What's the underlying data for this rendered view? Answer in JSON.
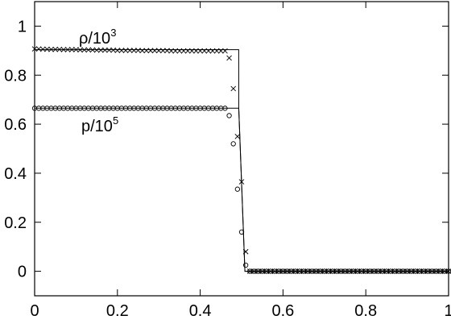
{
  "chart_data": {
    "type": "line",
    "title": "",
    "xlabel": "",
    "ylabel": "",
    "xlim": [
      0,
      1
    ],
    "ylim": [
      -0.1,
      1.1
    ],
    "x_ticks": [
      "0",
      "0.2",
      "0.4",
      "0.6",
      "0.8",
      "1"
    ],
    "x_tick_values": [
      0,
      0.2,
      0.4,
      0.6,
      0.8,
      1
    ],
    "y_ticks": [
      "0",
      "0.2",
      "0.4",
      "0.6",
      "0.8",
      "1"
    ],
    "y_tick_values": [
      0,
      0.2,
      0.4,
      0.6,
      0.8,
      1
    ],
    "grid": false,
    "annotations": [
      {
        "base": "ρ/10",
        "exp": "3"
      },
      {
        "base": "p/10",
        "exp": "5"
      }
    ],
    "series": [
      {
        "kind": "line",
        "color": "#000000",
        "x": [
          0,
          0.493,
          0.4931,
          0.508,
          0.5081,
          1
        ],
        "y": [
          0.904,
          0.904,
          0.665,
          0.0,
          0.0,
          0.0
        ]
      },
      {
        "kind": "line",
        "color": "#000000",
        "x": [
          0,
          0.4931,
          0.508,
          1
        ],
        "y": [
          0.665,
          0.665,
          0.0,
          0.0
        ]
      },
      {
        "kind": "markers",
        "marker": "x",
        "color": "#000000",
        "x": [
          0.0,
          0.01,
          0.02,
          0.03,
          0.04,
          0.05,
          0.06,
          0.07,
          0.08,
          0.09,
          0.1,
          0.11,
          0.12,
          0.13,
          0.14,
          0.15,
          0.16,
          0.17,
          0.18,
          0.19,
          0.2,
          0.21,
          0.22,
          0.23,
          0.24,
          0.25,
          0.26,
          0.27,
          0.28,
          0.29,
          0.3,
          0.31,
          0.32,
          0.33,
          0.34,
          0.35,
          0.36,
          0.37,
          0.38,
          0.39,
          0.4,
          0.41,
          0.42,
          0.43,
          0.44,
          0.45,
          0.46,
          0.47,
          0.48,
          0.49,
          0.5,
          0.51,
          0.52,
          0.53,
          0.54,
          0.55,
          0.56,
          0.57,
          0.58,
          0.59,
          0.6,
          0.61,
          0.62,
          0.63,
          0.64,
          0.65,
          0.66,
          0.67,
          0.68,
          0.69,
          0.7,
          0.71,
          0.72,
          0.73,
          0.74,
          0.75,
          0.76,
          0.77,
          0.78,
          0.79,
          0.8,
          0.81,
          0.82,
          0.83,
          0.84,
          0.85,
          0.86,
          0.87,
          0.88,
          0.89,
          0.9,
          0.91,
          0.92,
          0.93,
          0.94,
          0.95,
          0.96,
          0.97,
          0.98,
          0.99,
          1.0
        ],
        "y": [
          0.907,
          0.907,
          0.906,
          0.906,
          0.905,
          0.905,
          0.905,
          0.904,
          0.904,
          0.904,
          0.904,
          0.903,
          0.903,
          0.903,
          0.903,
          0.902,
          0.902,
          0.902,
          0.902,
          0.902,
          0.901,
          0.901,
          0.901,
          0.901,
          0.901,
          0.901,
          0.9,
          0.9,
          0.9,
          0.9,
          0.9,
          0.9,
          0.9,
          0.899,
          0.899,
          0.899,
          0.899,
          0.899,
          0.899,
          0.899,
          0.899,
          0.899,
          0.899,
          0.899,
          0.899,
          0.899,
          0.899,
          0.87,
          0.745,
          0.55,
          0.365,
          0.08,
          0.0,
          0.0,
          0.0,
          0.0,
          0.0,
          0.0,
          0.0,
          0.0,
          0.0,
          0.0,
          0.0,
          0.0,
          0.0,
          0.0,
          0.0,
          0.0,
          0.0,
          0.0,
          0.0,
          0.0,
          0.0,
          0.0,
          0.0,
          0.0,
          0.0,
          0.0,
          0.0,
          0.0,
          0.0,
          0.0,
          0.0,
          0.0,
          0.0,
          0.0,
          0.0,
          0.0,
          0.0,
          0.0,
          0.0,
          0.0,
          0.0,
          0.0,
          0.0,
          0.0,
          0.0,
          0.0,
          0.0,
          0.0,
          0.0
        ]
      },
      {
        "kind": "markers",
        "marker": "o",
        "color": "#000000",
        "x": [
          0.0,
          0.01,
          0.02,
          0.03,
          0.04,
          0.05,
          0.06,
          0.07,
          0.08,
          0.09,
          0.1,
          0.11,
          0.12,
          0.13,
          0.14,
          0.15,
          0.16,
          0.17,
          0.18,
          0.19,
          0.2,
          0.21,
          0.22,
          0.23,
          0.24,
          0.25,
          0.26,
          0.27,
          0.28,
          0.29,
          0.3,
          0.31,
          0.32,
          0.33,
          0.34,
          0.35,
          0.36,
          0.37,
          0.38,
          0.39,
          0.4,
          0.41,
          0.42,
          0.43,
          0.44,
          0.45,
          0.46,
          0.47,
          0.48,
          0.49,
          0.5,
          0.51,
          0.52,
          0.53,
          0.54,
          0.55,
          0.56,
          0.57,
          0.58,
          0.59,
          0.6,
          0.61,
          0.62,
          0.63,
          0.64,
          0.65,
          0.66,
          0.67,
          0.68,
          0.69,
          0.7,
          0.71,
          0.72,
          0.73,
          0.74,
          0.75,
          0.76,
          0.77,
          0.78,
          0.79,
          0.8,
          0.81,
          0.82,
          0.83,
          0.84,
          0.85,
          0.86,
          0.87,
          0.88,
          0.89,
          0.9,
          0.91,
          0.92,
          0.93,
          0.94,
          0.95,
          0.96,
          0.97,
          0.98,
          0.99,
          1.0
        ],
        "y": [
          0.665,
          0.665,
          0.665,
          0.665,
          0.665,
          0.665,
          0.665,
          0.665,
          0.665,
          0.665,
          0.665,
          0.665,
          0.665,
          0.665,
          0.665,
          0.665,
          0.665,
          0.665,
          0.665,
          0.665,
          0.665,
          0.665,
          0.665,
          0.665,
          0.665,
          0.665,
          0.665,
          0.665,
          0.665,
          0.665,
          0.665,
          0.665,
          0.665,
          0.665,
          0.665,
          0.665,
          0.665,
          0.665,
          0.665,
          0.665,
          0.665,
          0.665,
          0.665,
          0.665,
          0.665,
          0.665,
          0.665,
          0.635,
          0.52,
          0.335,
          0.16,
          0.025,
          0.0,
          0.0,
          0.0,
          0.0,
          0.0,
          0.0,
          0.0,
          0.0,
          0.0,
          0.0,
          0.0,
          0.0,
          0.0,
          0.0,
          0.0,
          0.0,
          0.0,
          0.0,
          0.0,
          0.0,
          0.0,
          0.0,
          0.0,
          0.0,
          0.0,
          0.0,
          0.0,
          0.0,
          0.0,
          0.0,
          0.0,
          0.0,
          0.0,
          0.0,
          0.0,
          0.0,
          0.0,
          0.0,
          0.0,
          0.0,
          0.0,
          0.0,
          0.0,
          0.0,
          0.0,
          0.0,
          0.0,
          0.0,
          0.0
        ]
      }
    ]
  }
}
